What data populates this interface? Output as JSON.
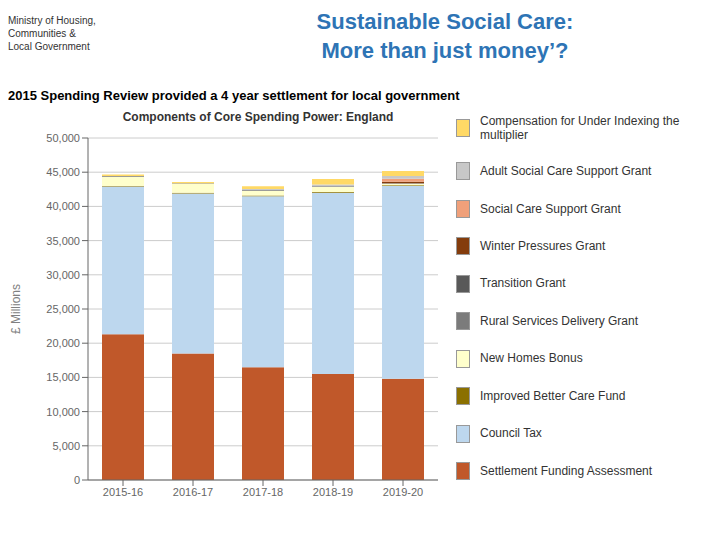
{
  "chart_data": {
    "type": "bar",
    "stacked": true,
    "title": "Components of Core Spending Power: England",
    "subtitle": "2015 Spending Review provided a 4 year settlement for local government",
    "annotations": [
      {
        "text": "Sustainable Social Care:\nMore than just money’?",
        "color": "#2E74B5"
      },
      {
        "text": "Ministry of Housing,\nCommunities &\nLocal Government"
      }
    ],
    "ylabel": "£ Millions",
    "categories": [
      "2015-16",
      "2016-17",
      "2017-18",
      "2018-19",
      "2019-20"
    ],
    "series": [
      {
        "name": "Settlement Funding Assessment",
        "color": "#C0582A",
        "values": [
          21300,
          18500,
          16500,
          15500,
          14800
        ]
      },
      {
        "name": "Council Tax",
        "color": "#BDD7EE",
        "values": [
          21600,
          23400,
          25000,
          26500,
          28200
        ]
      },
      {
        "name": "Improved Better Care Fund",
        "color": "#8B7000",
        "values": [
          100,
          100,
          100,
          100,
          100
        ]
      },
      {
        "name": "New Homes Bonus",
        "color": "#FFFFCC",
        "values": [
          1350,
          1300,
          700,
          750,
          200
        ]
      },
      {
        "name": "Rural Services Delivery Grant",
        "color": "#7B7B7B",
        "values": [
          80,
          80,
          80,
          80,
          80
        ]
      },
      {
        "name": "Transition Grant",
        "color": "#595959",
        "values": [
          0,
          0,
          0,
          0,
          0
        ]
      },
      {
        "name": "Winter Pressures Grant",
        "color": "#843C0C",
        "values": [
          0,
          0,
          0,
          0,
          240
        ]
      },
      {
        "name": "Social Care Support Grant",
        "color": "#F0A07A",
        "values": [
          0,
          0,
          0,
          0,
          410
        ]
      },
      {
        "name": "Adult Social Care Support Grant",
        "color": "#C8C8C8",
        "values": [
          0,
          0,
          150,
          270,
          400
        ]
      },
      {
        "name": "Compensation for Under Indexing the\nmultiplier",
        "color": "#FFD966",
        "values": [
          250,
          200,
          430,
          820,
          750
        ]
      }
    ],
    "ylim": [
      0,
      50000
    ],
    "yticks": [
      0,
      {
        "value": 5000,
        "label": "5,000"
      },
      {
        "value": 10000,
        "label": "10,000"
      },
      {
        "value": 15000,
        "label": "15,000"
      },
      {
        "value": 20000,
        "label": "20,000"
      },
      {
        "value": 25000,
        "label": "25,000"
      },
      {
        "value": 30000,
        "label": "30,000"
      },
      {
        "value": 35000,
        "label": "35,000"
      },
      {
        "value": 40000,
        "label": "40,000"
      },
      {
        "value": 45000,
        "label": "45,000"
      },
      {
        "value": 50000,
        "label": "50,000"
      }
    ],
    "grid": true,
    "legend": "right"
  }
}
